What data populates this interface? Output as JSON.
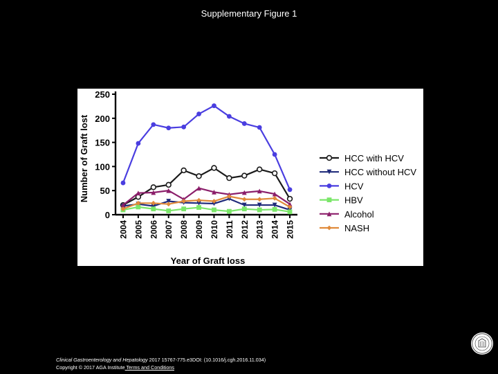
{
  "slide": {
    "title": "Supplementary Figure 1"
  },
  "footer": {
    "journal": "Clinical Gastroenterology and Hepatology",
    "citation": " 2017 15767-775.e3DOI: (10.1016/j.cgh.2016.11.034)",
    "copyright": "Copyright © 2017 AGA Institute",
    "link": " Terms and Conditions"
  },
  "seal": {
    "icon": "university-seal-icon"
  },
  "chart_data": {
    "type": "line",
    "xlabel": "Year of Graft loss",
    "ylabel": "Number of Graft lost",
    "categories": [
      "2004",
      "2005",
      "2006",
      "2007",
      "2008",
      "2009",
      "2010",
      "2011",
      "2012",
      "2013",
      "2014",
      "2015"
    ],
    "ylim": [
      0,
      250
    ],
    "yticks": [
      "0",
      "50",
      "100",
      "150",
      "200",
      "250"
    ],
    "grid": false,
    "legend_position": "right",
    "series": [
      {
        "name": "HCC with HCV",
        "color": "#1a1a1a",
        "marker": "circle-open",
        "values": [
          20,
          37,
          57,
          62,
          92,
          80,
          97,
          76,
          81,
          94,
          86,
          33
        ]
      },
      {
        "name": "HCC without HCV",
        "color": "#1f2a7a",
        "marker": "triangle-down",
        "values": [
          18,
          22,
          18,
          28,
          25,
          24,
          23,
          33,
          20,
          20,
          20,
          10
        ]
      },
      {
        "name": "HCV",
        "color": "#4a3ee0",
        "marker": "circle",
        "values": [
          66,
          148,
          187,
          180,
          182,
          209,
          226,
          204,
          189,
          181,
          125,
          52
        ]
      },
      {
        "name": "HBV",
        "color": "#7be66a",
        "marker": "square",
        "values": [
          10,
          16,
          12,
          8,
          12,
          15,
          10,
          7,
          12,
          10,
          11,
          6
        ]
      },
      {
        "name": "Alcohol",
        "color": "#8b1e6a",
        "marker": "triangle-up",
        "values": [
          20,
          45,
          46,
          50,
          32,
          55,
          47,
          42,
          46,
          49,
          43,
          22
        ]
      },
      {
        "name": "NASH",
        "color": "#e08a3a",
        "marker": "diamond",
        "values": [
          12,
          24,
          24,
          22,
          28,
          30,
          28,
          38,
          32,
          32,
          34,
          16
        ]
      }
    ]
  }
}
